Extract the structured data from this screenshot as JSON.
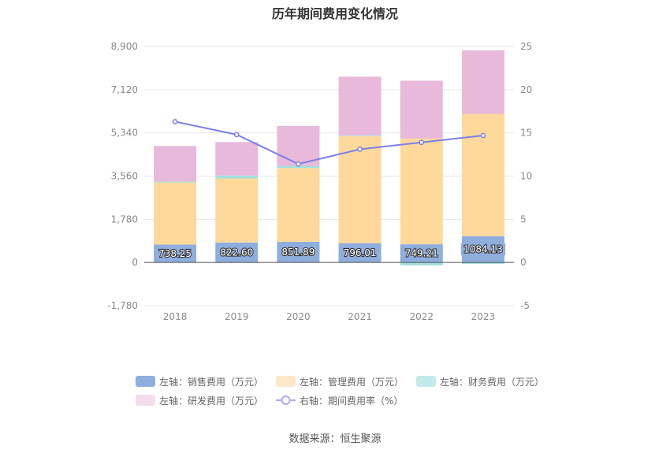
{
  "title": "历年期间费用变化情况",
  "source": "数据来源：恒生聚源",
  "chart_data": {
    "type": "bar",
    "categories": [
      "2018",
      "2019",
      "2020",
      "2021",
      "2022",
      "2023"
    ],
    "series": [
      {
        "name": "左轴：销售费用（万元）",
        "axis": "left",
        "kind": "bar",
        "color": "#8eaede",
        "values": [
          738.25,
          822.6,
          851.89,
          796.01,
          749.21,
          1084.13
        ],
        "labels": [
          "738.25",
          "822.60",
          "851.89",
          "796.01",
          "749.21",
          "1084.13"
        ]
      },
      {
        "name": "左轴：管理费用（万元）",
        "axis": "left",
        "kind": "bar",
        "color": "#fed99b",
        "values": [
          2560,
          2640,
          3040,
          4410,
          4360,
          5040
        ]
      },
      {
        "name": "左轴：财务费用（万元）",
        "axis": "left",
        "kind": "bar",
        "color": "#a2dfdf",
        "values": [
          40,
          120,
          90,
          30,
          -120,
          -60
        ]
      },
      {
        "name": "左轴：研发费用（万元）",
        "axis": "left",
        "kind": "bar",
        "color": "#e8b9da",
        "values": [
          1460,
          1380,
          1640,
          2420,
          2380,
          2620
        ]
      },
      {
        "name": "右轴：期间费用率（%）",
        "axis": "right",
        "kind": "line",
        "color": "#7b7fe8",
        "values": [
          16.3,
          14.8,
          11.4,
          13.1,
          13.9,
          14.7
        ]
      }
    ],
    "left_axis": {
      "ylim": [
        -1780,
        8900
      ],
      "ticks": [
        "-1,780",
        "0",
        "1,780",
        "3,560",
        "5,340",
        "7,120",
        "8,900"
      ]
    },
    "right_axis": {
      "ylim": [
        -5,
        25
      ],
      "ticks": [
        "-5",
        "0",
        "5",
        "10",
        "15",
        "20",
        "25"
      ]
    },
    "legend_position": "bottom",
    "grid": true
  }
}
